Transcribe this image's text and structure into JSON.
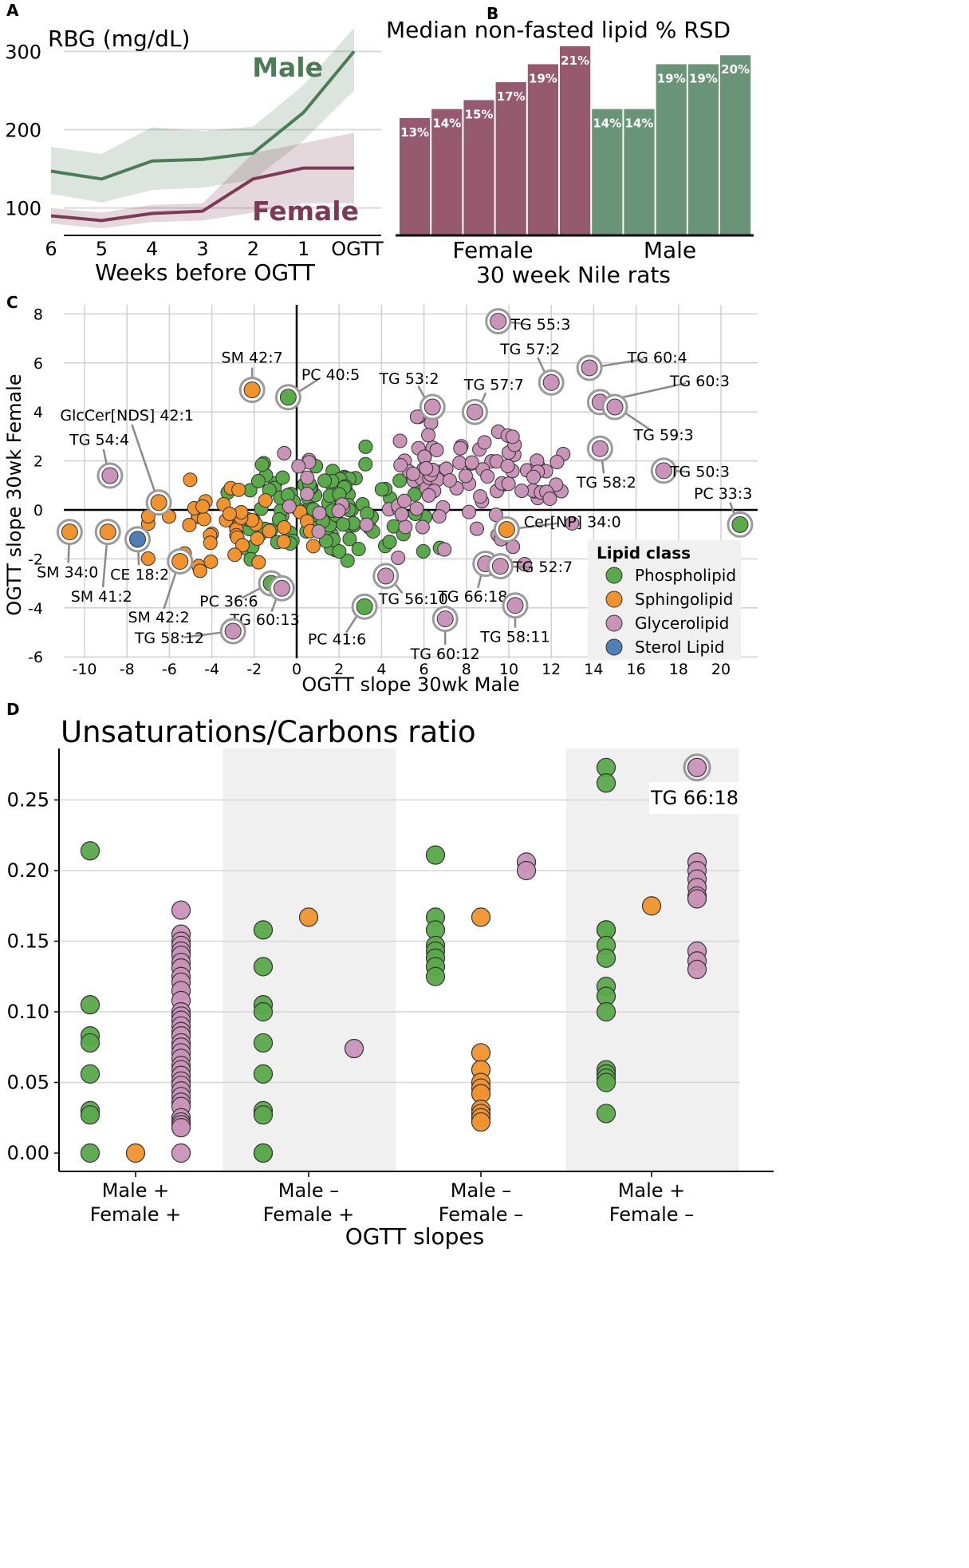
{
  "panels": [
    "A",
    "B",
    "C",
    "D"
  ],
  "colors": {
    "male": "#4a7d55",
    "female": "#7e3a54",
    "phospholipid": "#5aa94a",
    "sphingolipid": "#f0922e",
    "glycerolipid": "#c994b8",
    "sterol": "#4f7fb4",
    "male_bar": "#6a9478",
    "female_bar": "#955a6d"
  },
  "chart_data": [
    {
      "id": "A",
      "type": "line",
      "title": "",
      "ylabel": "RBG (mg/dL)",
      "xlabel": "Weeks before OGTT",
      "categories": [
        "6",
        "5",
        "4",
        "3",
        "2",
        "1",
        "OGTT"
      ],
      "ylim": [
        65,
        335
      ],
      "yticks": [
        100,
        200,
        300
      ],
      "series": [
        {
          "name": "Male",
          "values": [
            147,
            137,
            160,
            162,
            170,
            222,
            300
          ],
          "lower": [
            118,
            107,
            123,
            126,
            136,
            186,
            250
          ],
          "upper": [
            178,
            169,
            203,
            198,
            204,
            257,
            330
          ]
        },
        {
          "name": "Female",
          "values": [
            90,
            84,
            93,
            96,
            137,
            151,
            151
          ],
          "lower": [
            80,
            74,
            82,
            84,
            94,
            106,
            106
          ],
          "upper": [
            100,
            94,
            104,
            106,
            170,
            183,
            196
          ]
        }
      ]
    },
    {
      "id": "B",
      "type": "bar",
      "title": "Median non-fasted lipid % RSD",
      "xlabel": "30 week Nile rats",
      "group_labels": [
        "Female",
        "Male"
      ],
      "values": [
        13,
        14,
        15,
        17,
        19,
        21,
        14,
        14,
        19,
        19,
        20
      ],
      "groups": [
        "Female",
        "Female",
        "Female",
        "Female",
        "Female",
        "Female",
        "Male",
        "Male",
        "Male",
        "Male",
        "Male"
      ],
      "labels": [
        "13%",
        "14%",
        "15%",
        "17%",
        "19%",
        "21%",
        "14%",
        "14%",
        "19%",
        "19%",
        "20%"
      ],
      "ylim": [
        0,
        22
      ]
    },
    {
      "id": "C",
      "type": "scatter",
      "xlabel": "OGTT slope 30wk Male",
      "ylabel": "OGTT slope 30wk Female",
      "xlim": [
        -12,
        21.5
      ],
      "ylim": [
        -6.2,
        8.3
      ],
      "xticks": [
        -10,
        -8,
        -6,
        -4,
        -2,
        0,
        2,
        4,
        6,
        8,
        10,
        12,
        14,
        16,
        18,
        20
      ],
      "xticklabels": [
        "-10",
        "-8",
        "-6",
        "-4",
        "-2",
        "0",
        "2",
        "4",
        "6",
        "8",
        "10",
        "12",
        "14",
        "16",
        "18",
        "20"
      ],
      "yticks": [
        -6,
        -4,
        -2,
        0,
        2,
        4,
        6,
        8
      ],
      "yticklabels": [
        "-6",
        "-4",
        "-2",
        "0",
        "2",
        "4",
        "6",
        "8"
      ],
      "legend": {
        "title": "Lipid class",
        "position": "lower-right",
        "entries": [
          "Phospholipid",
          "Sphingolipid",
          "Glycerolipid",
          "Sterol Lipid"
        ]
      },
      "labeled_points": [
        {
          "label": "TG 55:3",
          "x": 9.5,
          "y": 7.7,
          "cls": "Glycerolipid",
          "tx": 11.5,
          "ty": 7.55
        },
        {
          "label": "TG 57:2",
          "x": 12.0,
          "y": 5.2,
          "cls": "Glycerolipid",
          "tx": 11.0,
          "ty": 6.55
        },
        {
          "label": "TG 60:4",
          "x": 13.8,
          "y": 5.8,
          "cls": "Glycerolipid",
          "tx": 17.0,
          "ty": 6.2
        },
        {
          "label": "TG 60:3",
          "x": 14.3,
          "y": 4.4,
          "cls": "Glycerolipid",
          "tx": 19.0,
          "ty": 5.25
        },
        {
          "label": "TG 59:3",
          "x": 15.0,
          "y": 4.2,
          "cls": "Glycerolipid",
          "tx": 17.3,
          "ty": 3.05
        },
        {
          "label": "TG 58:2",
          "x": 14.3,
          "y": 2.5,
          "cls": "Glycerolipid",
          "tx": 14.6,
          "ty": 1.1
        },
        {
          "label": "TG 50:3",
          "x": 17.3,
          "y": 1.6,
          "cls": "Glycerolipid",
          "tx": 19.0,
          "ty": 1.55
        },
        {
          "label": "PC 33:3",
          "x": 20.9,
          "y": -0.6,
          "cls": "Phospholipid",
          "tx": 20.1,
          "ty": 0.65
        },
        {
          "label": "TG 53:2",
          "x": 6.4,
          "y": 4.2,
          "cls": "Glycerolipid",
          "tx": 5.3,
          "ty": 5.35
        },
        {
          "label": "TG 57:7",
          "x": 8.4,
          "y": 4.0,
          "cls": "Glycerolipid",
          "tx": 9.3,
          "ty": 5.1
        },
        {
          "label": "SM 42:7",
          "x": -2.1,
          "y": 4.9,
          "cls": "Sphingolipid",
          "tx": -2.1,
          "ty": 6.2
        },
        {
          "label": "PC 40:5",
          "x": -0.4,
          "y": 4.6,
          "cls": "Phospholipid",
          "tx": 1.6,
          "ty": 5.5
        },
        {
          "label": "GlcCer[NDS] 42:1",
          "x": -6.5,
          "y": 0.3,
          "cls": "Sphingolipid",
          "tx": -8.0,
          "ty": 3.85
        },
        {
          "label": "TG 54:4",
          "x": -8.8,
          "y": 1.4,
          "cls": "Glycerolipid",
          "tx": -9.3,
          "ty": 2.85
        },
        {
          "label": "SM 34:0",
          "x": -10.7,
          "y": -0.9,
          "cls": "Sphingolipid",
          "tx": -10.8,
          "ty": -2.55
        },
        {
          "label": "SM 41:2",
          "x": -8.9,
          "y": -0.9,
          "cls": "Sphingolipid",
          "tx": -9.2,
          "ty": -3.55
        },
        {
          "label": "CE 18:2",
          "x": -7.5,
          "y": -1.2,
          "cls": "Sterol Lipid",
          "tx": -7.4,
          "ty": -2.65
        },
        {
          "label": "SM 42:2",
          "x": -5.5,
          "y": -2.1,
          "cls": "Sphingolipid",
          "tx": -6.5,
          "ty": -4.4
        },
        {
          "label": "PC 36:6",
          "x": -1.2,
          "y": -3.0,
          "cls": "Phospholipid",
          "tx": -3.2,
          "ty": -3.75
        },
        {
          "label": "TG 60:13",
          "x": -0.7,
          "y": -3.2,
          "cls": "Glycerolipid",
          "tx": -1.5,
          "ty": -4.5
        },
        {
          "label": "TG 58:12",
          "x": -3.0,
          "y": -4.95,
          "cls": "Glycerolipid",
          "tx": -6.0,
          "ty": -5.25
        },
        {
          "label": "PC 41:6",
          "x": 3.2,
          "y": -3.95,
          "cls": "Phospholipid",
          "tx": 1.9,
          "ty": -5.3
        },
        {
          "label": "TG 56:10",
          "x": 4.2,
          "y": -2.7,
          "cls": "Glycerolipid",
          "tx": 5.5,
          "ty": -3.65
        },
        {
          "label": "TG 60:12",
          "x": 7.0,
          "y": -4.45,
          "cls": "Glycerolipid",
          "tx": 7.0,
          "ty": -5.9
        },
        {
          "label": "TG 66:18",
          "x": 8.9,
          "y": -2.2,
          "cls": "Glycerolipid",
          "tx": 8.3,
          "ty": -3.55
        },
        {
          "label": "TG 52:7",
          "x": 9.6,
          "y": -2.3,
          "cls": "Glycerolipid",
          "tx": 11.6,
          "ty": -2.35
        },
        {
          "label": "TG 58:11",
          "x": 10.3,
          "y": -3.9,
          "cls": "Glycerolipid",
          "tx": 10.3,
          "ty": -5.2
        },
        {
          "label": "Cer[NP] 34:0",
          "x": 9.9,
          "y": -0.8,
          "cls": "Sphingolipid",
          "tx": 13.0,
          "ty": -0.5
        }
      ]
    },
    {
      "id": "D",
      "type": "scatter",
      "title": "Unsaturations/Carbons ratio",
      "xlabel": "OGTT slopes",
      "categories": [
        "Male +\nFemale +",
        "Male –\nFemale +",
        "Male –\nFemale –",
        "Male +\nFemale –"
      ],
      "ylim": [
        -0.01,
        0.29
      ],
      "yticks": [
        0.0,
        0.05,
        0.1,
        0.15,
        0.2,
        0.25
      ],
      "yticklabels": [
        "0.00",
        "0.05",
        "0.10",
        "0.15",
        "0.20",
        "0.25"
      ],
      "shaded_groups": [
        1,
        3
      ],
      "series": [
        {
          "group": 0,
          "name": "Phospholipid",
          "values": [
            0.214,
            0.105,
            0.083,
            0.078,
            0.056,
            0.03,
            0.027,
            0.0
          ]
        },
        {
          "group": 0,
          "name": "Sphingolipid",
          "values": [
            0.0
          ]
        },
        {
          "group": 0,
          "name": "Glycerolipid",
          "values": [
            0.172,
            0.155,
            0.15,
            0.147,
            0.143,
            0.14,
            0.135,
            0.131,
            0.125,
            0.121,
            0.115,
            0.108,
            0.1,
            0.097,
            0.094,
            0.09,
            0.086,
            0.083,
            0.078,
            0.075,
            0.071,
            0.067,
            0.062,
            0.059,
            0.055,
            0.051,
            0.048,
            0.044,
            0.04,
            0.036,
            0.033,
            0.025,
            0.022,
            0.02,
            0.018,
            0.0
          ]
        },
        {
          "group": 1,
          "name": "Phospholipid",
          "values": [
            0.158,
            0.132,
            0.105,
            0.1,
            0.078,
            0.056,
            0.03,
            0.027,
            0.0,
            0.0
          ]
        },
        {
          "group": 1,
          "name": "Sphingolipid",
          "values": [
            0.167
          ]
        },
        {
          "group": 1,
          "name": "Glycerolipid",
          "values": [
            0.074
          ]
        },
        {
          "group": 2,
          "name": "Phospholipid",
          "values": [
            0.211,
            0.167,
            0.158,
            0.147,
            0.143,
            0.138,
            0.132,
            0.125
          ]
        },
        {
          "group": 2,
          "name": "Sphingolipid",
          "values": [
            0.167,
            0.071,
            0.059,
            0.05,
            0.046,
            0.042,
            0.031,
            0.028,
            0.025,
            0.022
          ]
        },
        {
          "group": 2,
          "name": "Glycerolipid",
          "values": [
            0.206,
            0.2
          ]
        },
        {
          "group": 3,
          "name": "Phospholipid",
          "values": [
            0.273,
            0.262,
            0.158,
            0.158,
            0.147,
            0.138,
            0.118,
            0.111,
            0.1,
            0.059,
            0.056,
            0.053,
            0.05,
            0.028
          ]
        },
        {
          "group": 3,
          "name": "Sphingolipid",
          "values": [
            0.175
          ]
        },
        {
          "group": 3,
          "name": "Glycerolipid",
          "values": [
            0.273,
            0.206,
            0.2,
            0.194,
            0.188,
            0.182,
            0.18,
            0.143,
            0.136,
            0.13
          ]
        }
      ],
      "annotation": {
        "label": "TG 66:18",
        "group": 3,
        "y": 0.273
      }
    }
  ]
}
